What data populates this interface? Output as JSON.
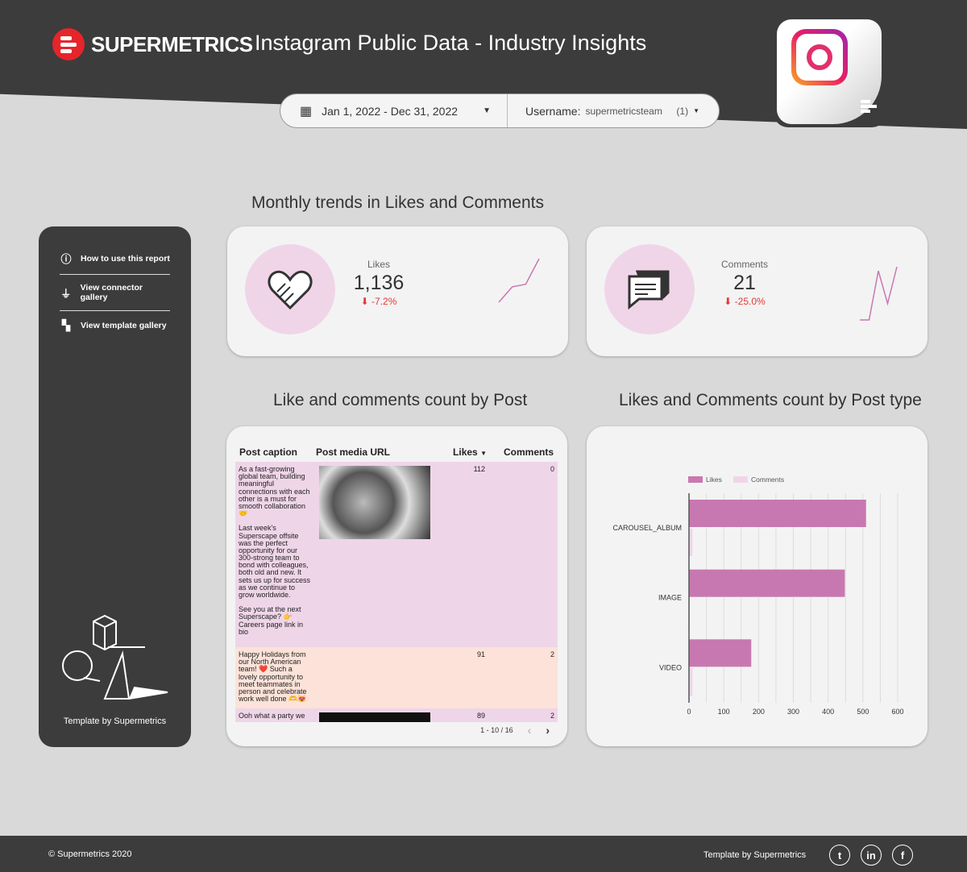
{
  "header": {
    "brand": "SUPERMETRICS",
    "title": "Instagram Public Data - Industry Insights"
  },
  "filters": {
    "date_range": "Jan 1, 2022 - Dec 31, 2022",
    "username_label": "Username:",
    "username_value": "supermetricsteam",
    "username_count": "(1)"
  },
  "sidebar": {
    "items": [
      {
        "label": "How to use this report",
        "icon": "info-icon"
      },
      {
        "label": "View connector gallery",
        "icon": "plug-icon"
      },
      {
        "label": "View template gallery",
        "icon": "grid-icon"
      }
    ],
    "footer": "Template by Supermetrics"
  },
  "sections": {
    "trends": "Monthly trends in Likes and Comments",
    "by_post": "Like and comments count by Post",
    "by_type": "Likes and Comments count by Post type"
  },
  "kpis": [
    {
      "label": "Likes",
      "value": "1,136",
      "delta": "-7.2%",
      "icon": "heart-icon"
    },
    {
      "label": "Comments",
      "value": "21",
      "delta": "-25.0%",
      "icon": "chat-icon"
    }
  ],
  "colors": {
    "accent": "#c878b0",
    "light": "#f0d5e8",
    "negative": "#e53935",
    "dark": "#3c3c3c"
  },
  "table": {
    "headers": [
      "Post caption",
      "Post media URL",
      "Likes",
      "Comments"
    ],
    "sort": "Likes descending",
    "rows": [
      {
        "caption": "As a fast-growing global team, building meaningful connections with each other is a must for smooth collaboration 🤝\n\nLast week's Superscape offsite was the perfect opportunity for our 300-strong team to bond with colleagues, both old and new. It sets us up for success as we continue to grow worldwide.\n\nSee you at the next Superscape? 👉 Careers page link in bio",
        "likes": "112",
        "comments": "0",
        "has_image": true
      },
      {
        "caption": "Happy Holidays from our North American team! ❤️ Such a lovely opportunity to meet teammates in person and celebrate work well done 🫶😻",
        "likes": "91",
        "comments": "2",
        "has_image": false
      },
      {
        "caption": "Ooh what a party we",
        "likes": "89",
        "comments": "2",
        "has_image": true
      }
    ],
    "pagination": "1 - 10 / 16"
  },
  "chart_data": [
    {
      "type": "bar",
      "orientation": "horizontal",
      "categories": [
        "CAROUSEL_ALBUM",
        "IMAGE",
        "VIDEO"
      ],
      "series": [
        {
          "name": "Likes",
          "values": [
            509,
            448,
            179
          ]
        },
        {
          "name": "Comments",
          "values": [
            10,
            1,
            10
          ]
        }
      ],
      "xlim": [
        0,
        600
      ],
      "xticks": [
        0,
        100,
        200,
        300,
        400,
        500,
        600
      ],
      "grid": true,
      "legend": "top-left"
    },
    {
      "type": "line",
      "name": "likes-sparkline",
      "values": [
        10,
        40,
        45,
        95
      ]
    },
    {
      "type": "line",
      "name": "comments-sparkline",
      "values": [
        0,
        0,
        12,
        4,
        13
      ]
    }
  ],
  "footer": {
    "copyright": "© Supermetrics 2020",
    "template": "Template by Supermetrics",
    "social": [
      "twitter-icon",
      "linkedin-icon",
      "facebook-icon"
    ]
  }
}
